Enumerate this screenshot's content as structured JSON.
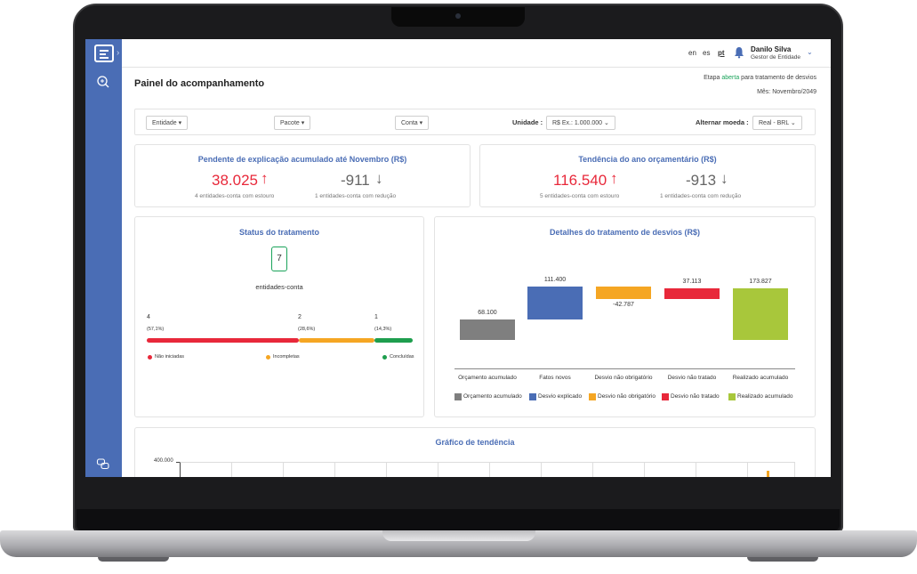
{
  "header": {
    "languages": [
      "en",
      "es",
      "pt"
    ],
    "user_name": "Danilo Silva",
    "user_role": "Gestor de Entidade"
  },
  "page": {
    "title": "Painel do acompanhamento",
    "stage_prefix": "Etapa",
    "stage_status": "aberta",
    "stage_suffix": "para tratamento de desvios",
    "month": "Mês: Novembro/2049"
  },
  "filters": {
    "entidade": "Entidade",
    "pacote": "Pacote",
    "conta": "Conta",
    "unidade_label": "Unidade :",
    "unidade_value": "R$ Ex.: 1.000.000",
    "moeda_label": "Alternar moeda :",
    "moeda_value": "Real - BRL"
  },
  "kpi_pendente": {
    "title": "Pendente de explicação acumulado até Novembro (R$)",
    "up_value": "38.025",
    "up_sub": "4 entidades-conta com estouro",
    "down_value": "-911",
    "down_sub": "1 entidades-conta com redução"
  },
  "kpi_tendencia": {
    "title": "Tendência do ano orçamentário (R$)",
    "up_value": "116.540",
    "up_sub": "5 entidades-conta com estouro",
    "down_value": "-913",
    "down_sub": "1 entidades-conta com redução"
  },
  "status": {
    "title": "Status do tratamento",
    "total": "7",
    "total_label": "entidades-conta",
    "segments": [
      {
        "count": "4",
        "pct": "(57,1%)",
        "label": "Não iniciadas",
        "color": "#e8283a",
        "fraction": 0.571
      },
      {
        "count": "2",
        "pct": "(28,6%)",
        "label": "Incompletas",
        "color": "#f5a623",
        "fraction": 0.286
      },
      {
        "count": "1",
        "pct": "(14,3%)",
        "label": "Concluídas",
        "color": "#1e9e4e",
        "fraction": 0.143
      }
    ]
  },
  "chart_data": {
    "type": "bar",
    "title": "Detalhes do tratamento de desvios (R$)",
    "categories": [
      "Orçamento acumulado",
      "Fatos novos",
      "Desvio não obrigatório",
      "Desvio não tratado",
      "Realizado acumulado"
    ],
    "values": [
      68100,
      111400,
      -42787,
      37113,
      173827
    ],
    "value_labels": [
      "68.100",
      "111.400",
      "-42.787",
      "37.113",
      "173.827"
    ],
    "legend": [
      "Orçamento acumulado",
      "Desvio explicado",
      "Desvio não obrigatório",
      "Desvio não tratado",
      "Realizado acumulado"
    ],
    "colors": [
      "#7f7f7f",
      "#4a6db5",
      "#f5a623",
      "#e8283a",
      "#a8c73b"
    ],
    "legend_position": "bottom"
  },
  "trend": {
    "title": "Gráfico de tendência",
    "y_tick_top": "400.000"
  }
}
